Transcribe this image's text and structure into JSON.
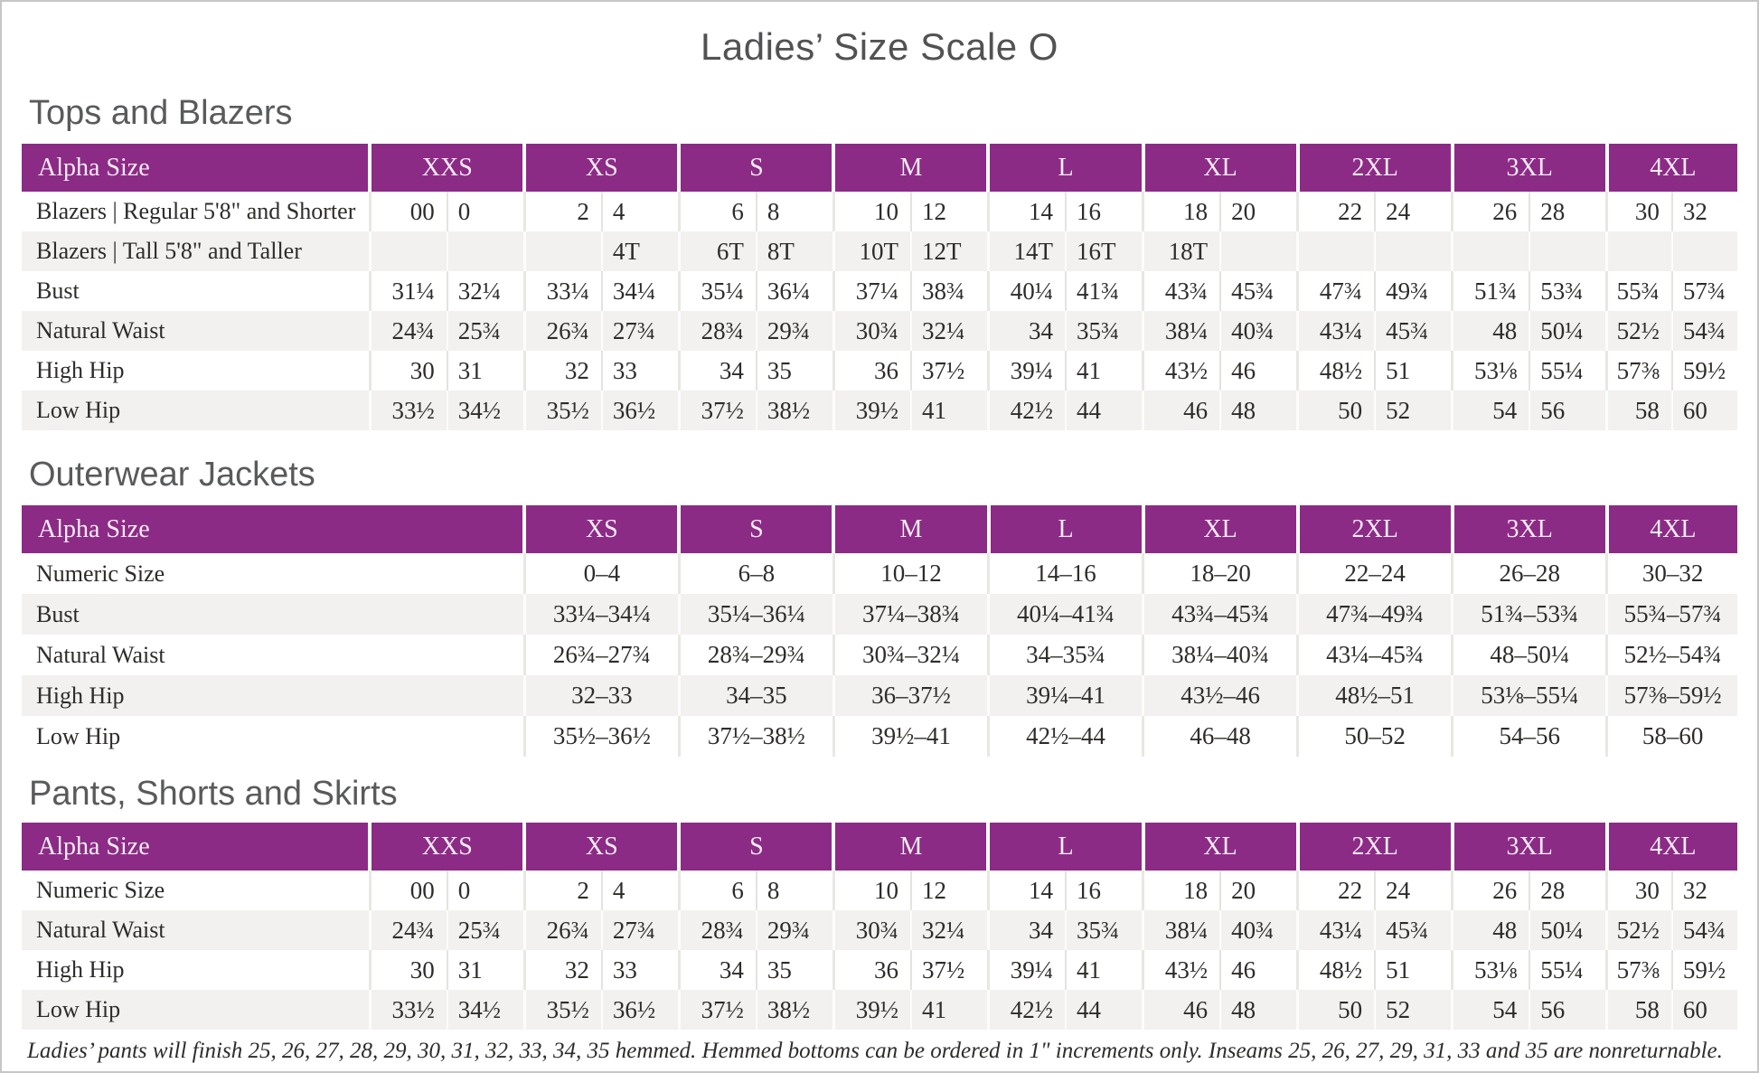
{
  "page": {
    "title": "Ladies’ Size Scale O",
    "footnote": "Ladies’ pants will finish 25, 26, 27, 28, 29, 30, 31, 32, 33, 34, 35 hemmed. Hemmed bottoms can be ordered in 1\" increments only. Inseams 25, 26, 27, 29, 31, 33 and 35 are nonreturnable."
  },
  "colors": {
    "accent_purple": "#8b2b85",
    "alt_row_gray": "#f2f1ef",
    "heading_gray": "#595a5c",
    "body_text": "#2e2c2a"
  },
  "tables": [
    {
      "heading": "Tops and Blazers",
      "layout": "paired",
      "corner_label": "Alpha Size",
      "sizes": [
        "XXS",
        "XS",
        "S",
        "M",
        "L",
        "XL",
        "2XL",
        "3XL",
        "4XL"
      ],
      "rows": [
        {
          "label": "Blazers | Regular 5'8\" and Shorter",
          "cells": [
            [
              "00",
              "0"
            ],
            [
              "2",
              "4"
            ],
            [
              "6",
              "8"
            ],
            [
              "10",
              "12"
            ],
            [
              "14",
              "16"
            ],
            [
              "18",
              "20"
            ],
            [
              "22",
              "24"
            ],
            [
              "26",
              "28"
            ],
            [
              "30",
              "32"
            ]
          ]
        },
        {
          "label": "Blazers | Tall 5'8\" and Taller",
          "cells": [
            [
              "",
              ""
            ],
            [
              "",
              "4T"
            ],
            [
              "6T",
              "8T"
            ],
            [
              "10T",
              "12T"
            ],
            [
              "14T",
              "16T"
            ],
            [
              "18T",
              ""
            ],
            [
              "",
              ""
            ],
            [
              "",
              ""
            ],
            [
              "",
              ""
            ]
          ]
        },
        {
          "label": "Bust",
          "cells": [
            [
              "31¼",
              "32¼"
            ],
            [
              "33¼",
              "34¼"
            ],
            [
              "35¼",
              "36¼"
            ],
            [
              "37¼",
              "38¾"
            ],
            [
              "40¼",
              "41¾"
            ],
            [
              "43¾",
              "45¾"
            ],
            [
              "47¾",
              "49¾"
            ],
            [
              "51¾",
              "53¾"
            ],
            [
              "55¾",
              "57¾"
            ]
          ]
        },
        {
          "label": "Natural Waist",
          "cells": [
            [
              "24¾",
              "25¾"
            ],
            [
              "26¾",
              "27¾"
            ],
            [
              "28¾",
              "29¾"
            ],
            [
              "30¾",
              "32¼"
            ],
            [
              "34",
              "35¾"
            ],
            [
              "38¼",
              "40¾"
            ],
            [
              "43¼",
              "45¾"
            ],
            [
              "48",
              "50¼"
            ],
            [
              "52½",
              "54¾"
            ]
          ]
        },
        {
          "label": "High Hip",
          "cells": [
            [
              "30",
              "31"
            ],
            [
              "32",
              "33"
            ],
            [
              "34",
              "35"
            ],
            [
              "36",
              "37½"
            ],
            [
              "39¼",
              "41"
            ],
            [
              "43½",
              "46"
            ],
            [
              "48½",
              "51"
            ],
            [
              "53⅛",
              "55¼"
            ],
            [
              "57⅜",
              "59½"
            ]
          ]
        },
        {
          "label": "Low Hip",
          "cells": [
            [
              "33½",
              "34½"
            ],
            [
              "35½",
              "36½"
            ],
            [
              "37½",
              "38½"
            ],
            [
              "39½",
              "41"
            ],
            [
              "42½",
              "44"
            ],
            [
              "46",
              "48"
            ],
            [
              "50",
              "52"
            ],
            [
              "54",
              "56"
            ],
            [
              "58",
              "60"
            ]
          ]
        }
      ]
    },
    {
      "heading": "Outerwear Jackets",
      "layout": "single",
      "corner_label": "Alpha Size",
      "sizes": [
        "XS",
        "S",
        "M",
        "L",
        "XL",
        "2XL",
        "3XL",
        "4XL"
      ],
      "rows": [
        {
          "label": "Numeric Size",
          "cells": [
            "0–4",
            "6–8",
            "10–12",
            "14–16",
            "18–20",
            "22–24",
            "26–28",
            "30–32"
          ]
        },
        {
          "label": "Bust",
          "cells": [
            "33¼–34¼",
            "35¼–36¼",
            "37¼–38¾",
            "40¼–41¾",
            "43¾–45¾",
            "47¾–49¾",
            "51¾–53¾",
            "55¾–57¾"
          ]
        },
        {
          "label": "Natural Waist",
          "cells": [
            "26¾–27¾",
            "28¾–29¾",
            "30¾–32¼",
            "34–35¾",
            "38¼–40¾",
            "43¼–45¾",
            "48–50¼",
            "52½–54¾"
          ]
        },
        {
          "label": "High Hip",
          "cells": [
            "32–33",
            "34–35",
            "36–37½",
            "39¼–41",
            "43½–46",
            "48½–51",
            "53⅛–55¼",
            "57⅜–59½"
          ]
        },
        {
          "label": "Low Hip",
          "cells": [
            "35½–36½",
            "37½–38½",
            "39½–41",
            "42½–44",
            "46–48",
            "50–52",
            "54–56",
            "58–60"
          ]
        }
      ]
    },
    {
      "heading": "Pants, Shorts and Skirts",
      "layout": "paired",
      "corner_label": "Alpha Size",
      "sizes": [
        "XXS",
        "XS",
        "S",
        "M",
        "L",
        "XL",
        "2XL",
        "3XL",
        "4XL"
      ],
      "rows": [
        {
          "label": "Numeric Size",
          "cells": [
            [
              "00",
              "0"
            ],
            [
              "2",
              "4"
            ],
            [
              "6",
              "8"
            ],
            [
              "10",
              "12"
            ],
            [
              "14",
              "16"
            ],
            [
              "18",
              "20"
            ],
            [
              "22",
              "24"
            ],
            [
              "26",
              "28"
            ],
            [
              "30",
              "32"
            ]
          ]
        },
        {
          "label": "Natural Waist",
          "cells": [
            [
              "24¾",
              "25¾"
            ],
            [
              "26¾",
              "27¾"
            ],
            [
              "28¾",
              "29¾"
            ],
            [
              "30¾",
              "32¼"
            ],
            [
              "34",
              "35¾"
            ],
            [
              "38¼",
              "40¾"
            ],
            [
              "43¼",
              "45¾"
            ],
            [
              "48",
              "50¼"
            ],
            [
              "52½",
              "54¾"
            ]
          ]
        },
        {
          "label": "High Hip",
          "cells": [
            [
              "30",
              "31"
            ],
            [
              "32",
              "33"
            ],
            [
              "34",
              "35"
            ],
            [
              "36",
              "37½"
            ],
            [
              "39¼",
              "41"
            ],
            [
              "43½",
              "46"
            ],
            [
              "48½",
              "51"
            ],
            [
              "53⅛",
              "55¼"
            ],
            [
              "57⅜",
              "59½"
            ]
          ]
        },
        {
          "label": "Low Hip",
          "cells": [
            [
              "33½",
              "34½"
            ],
            [
              "35½",
              "36½"
            ],
            [
              "37½",
              "38½"
            ],
            [
              "39½",
              "41"
            ],
            [
              "42½",
              "44"
            ],
            [
              "46",
              "48"
            ],
            [
              "50",
              "52"
            ],
            [
              "54",
              "56"
            ],
            [
              "58",
              "60"
            ]
          ]
        }
      ]
    }
  ]
}
